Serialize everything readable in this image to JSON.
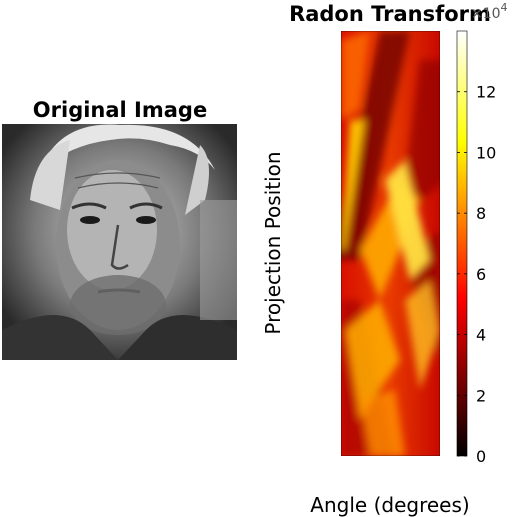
{
  "left_panel": {
    "title": "Original Image",
    "image_description_icon": "portrait-photo"
  },
  "chart_data": {
    "type": "heatmap",
    "title": "Radon Transform",
    "xlabel": "Angle (degrees)",
    "ylabel": "Projection Position",
    "colormap": "hot",
    "colorbar": {
      "ticks": [
        0,
        2,
        4,
        6,
        8,
        10,
        12
      ],
      "range": [
        0,
        14
      ],
      "exponent_label": "×10",
      "exponent": "4"
    },
    "colors": {
      "hot_black": "#000000",
      "hot_red": "#ff0000",
      "hot_yellow": "#ffff00",
      "hot_white": "#ffffff"
    }
  }
}
